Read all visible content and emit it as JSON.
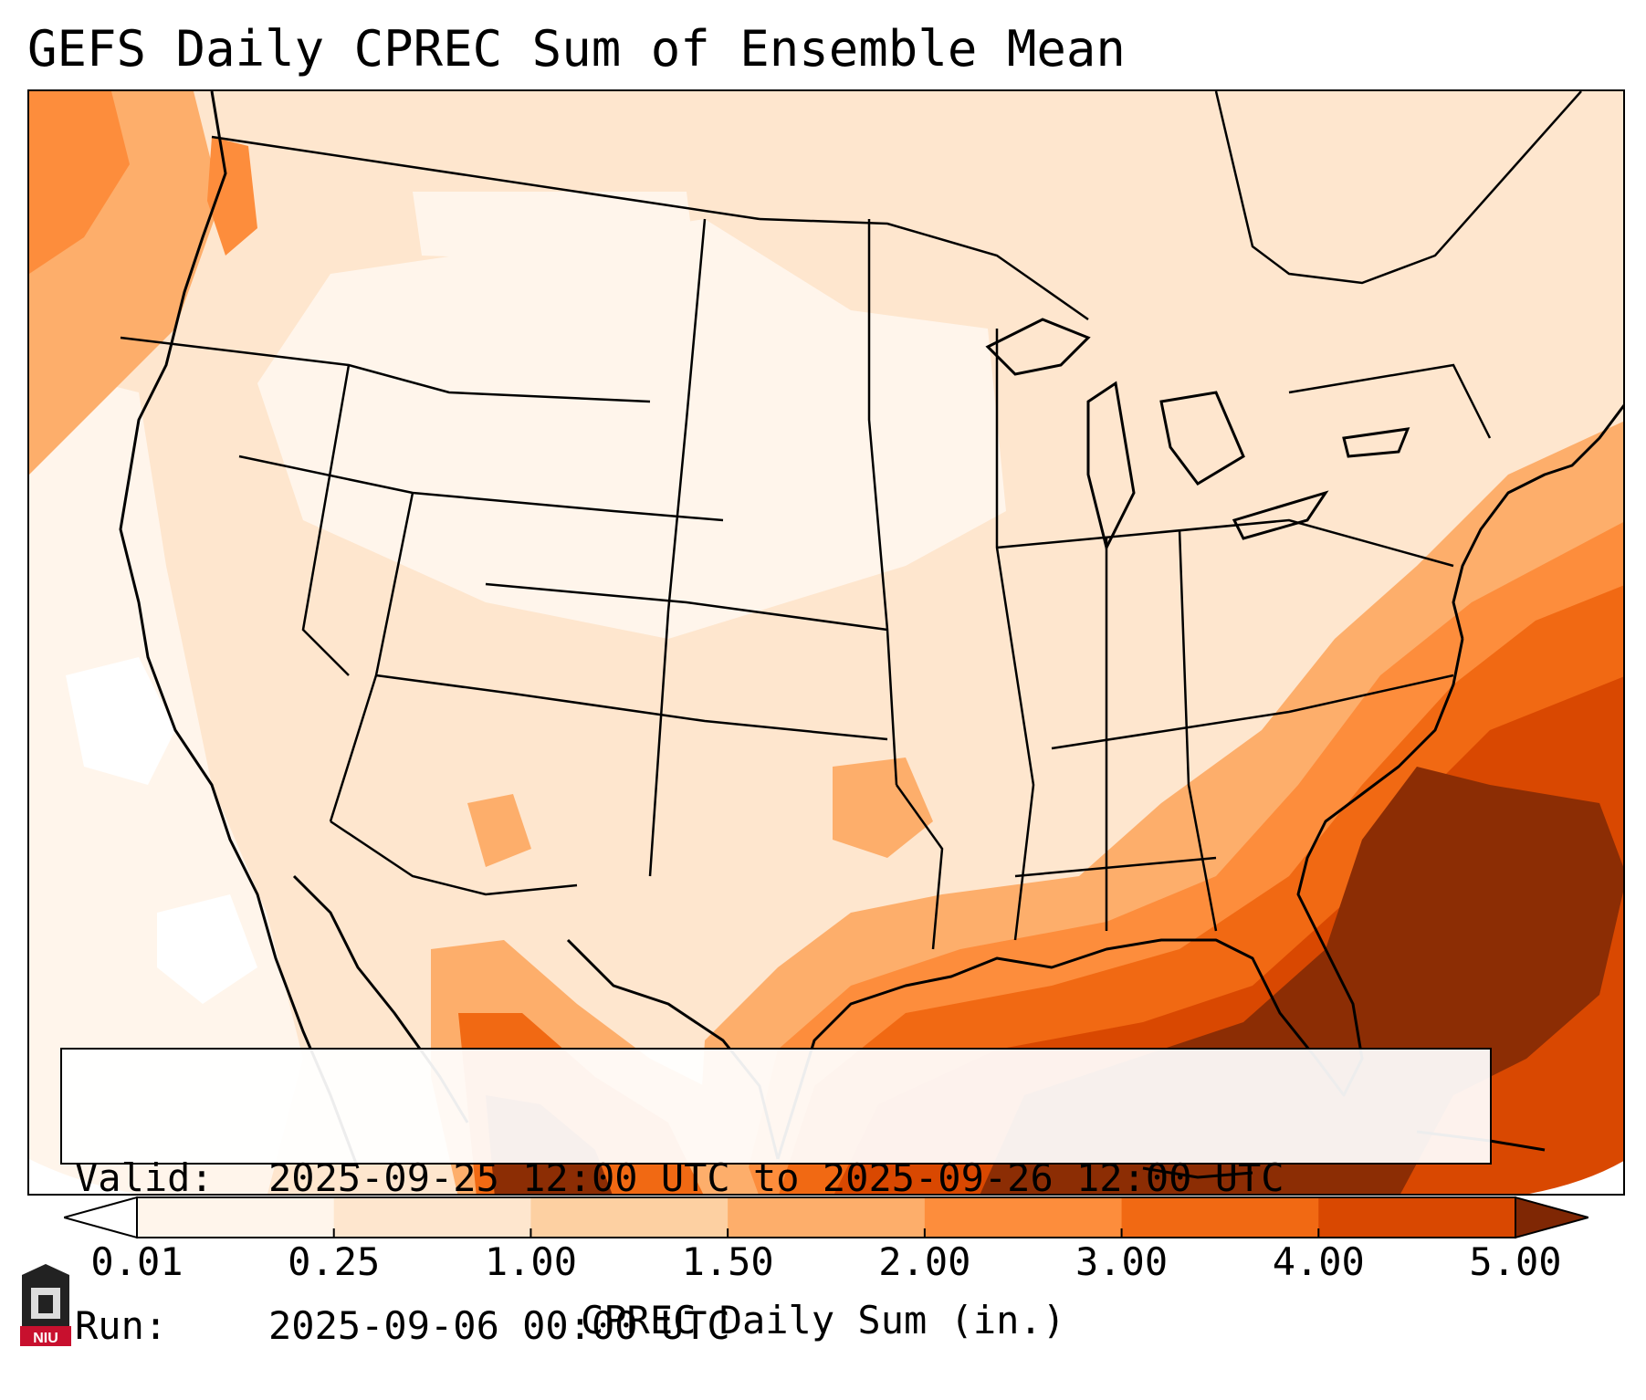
{
  "title": "GEFS Daily CPREC Sum of Ensemble Mean",
  "info": {
    "valid_key": "Valid:",
    "valid_value": "2025-09-25 12:00 UTC to 2025-09-26 12:00 UTC",
    "run_key": "Run:",
    "run_value": "2025-09-06 00:00 UTC"
  },
  "colorbar": {
    "label": "CPREC Daily Sum (in.)",
    "ticks": [
      "0.01",
      "0.25",
      "1.00",
      "1.50",
      "2.00",
      "3.00",
      "4.00",
      "5.00"
    ],
    "colors": [
      "#fff5eb",
      "#fee6ce",
      "#fdd0a2",
      "#fdae6b",
      "#fd8d3c",
      "#f16913",
      "#d94801",
      "#8c2d04"
    ],
    "under_color": "#ffffff",
    "over_color": "#7f2704"
  },
  "logo": {
    "text": "NIU",
    "color": "#c8102e"
  }
}
